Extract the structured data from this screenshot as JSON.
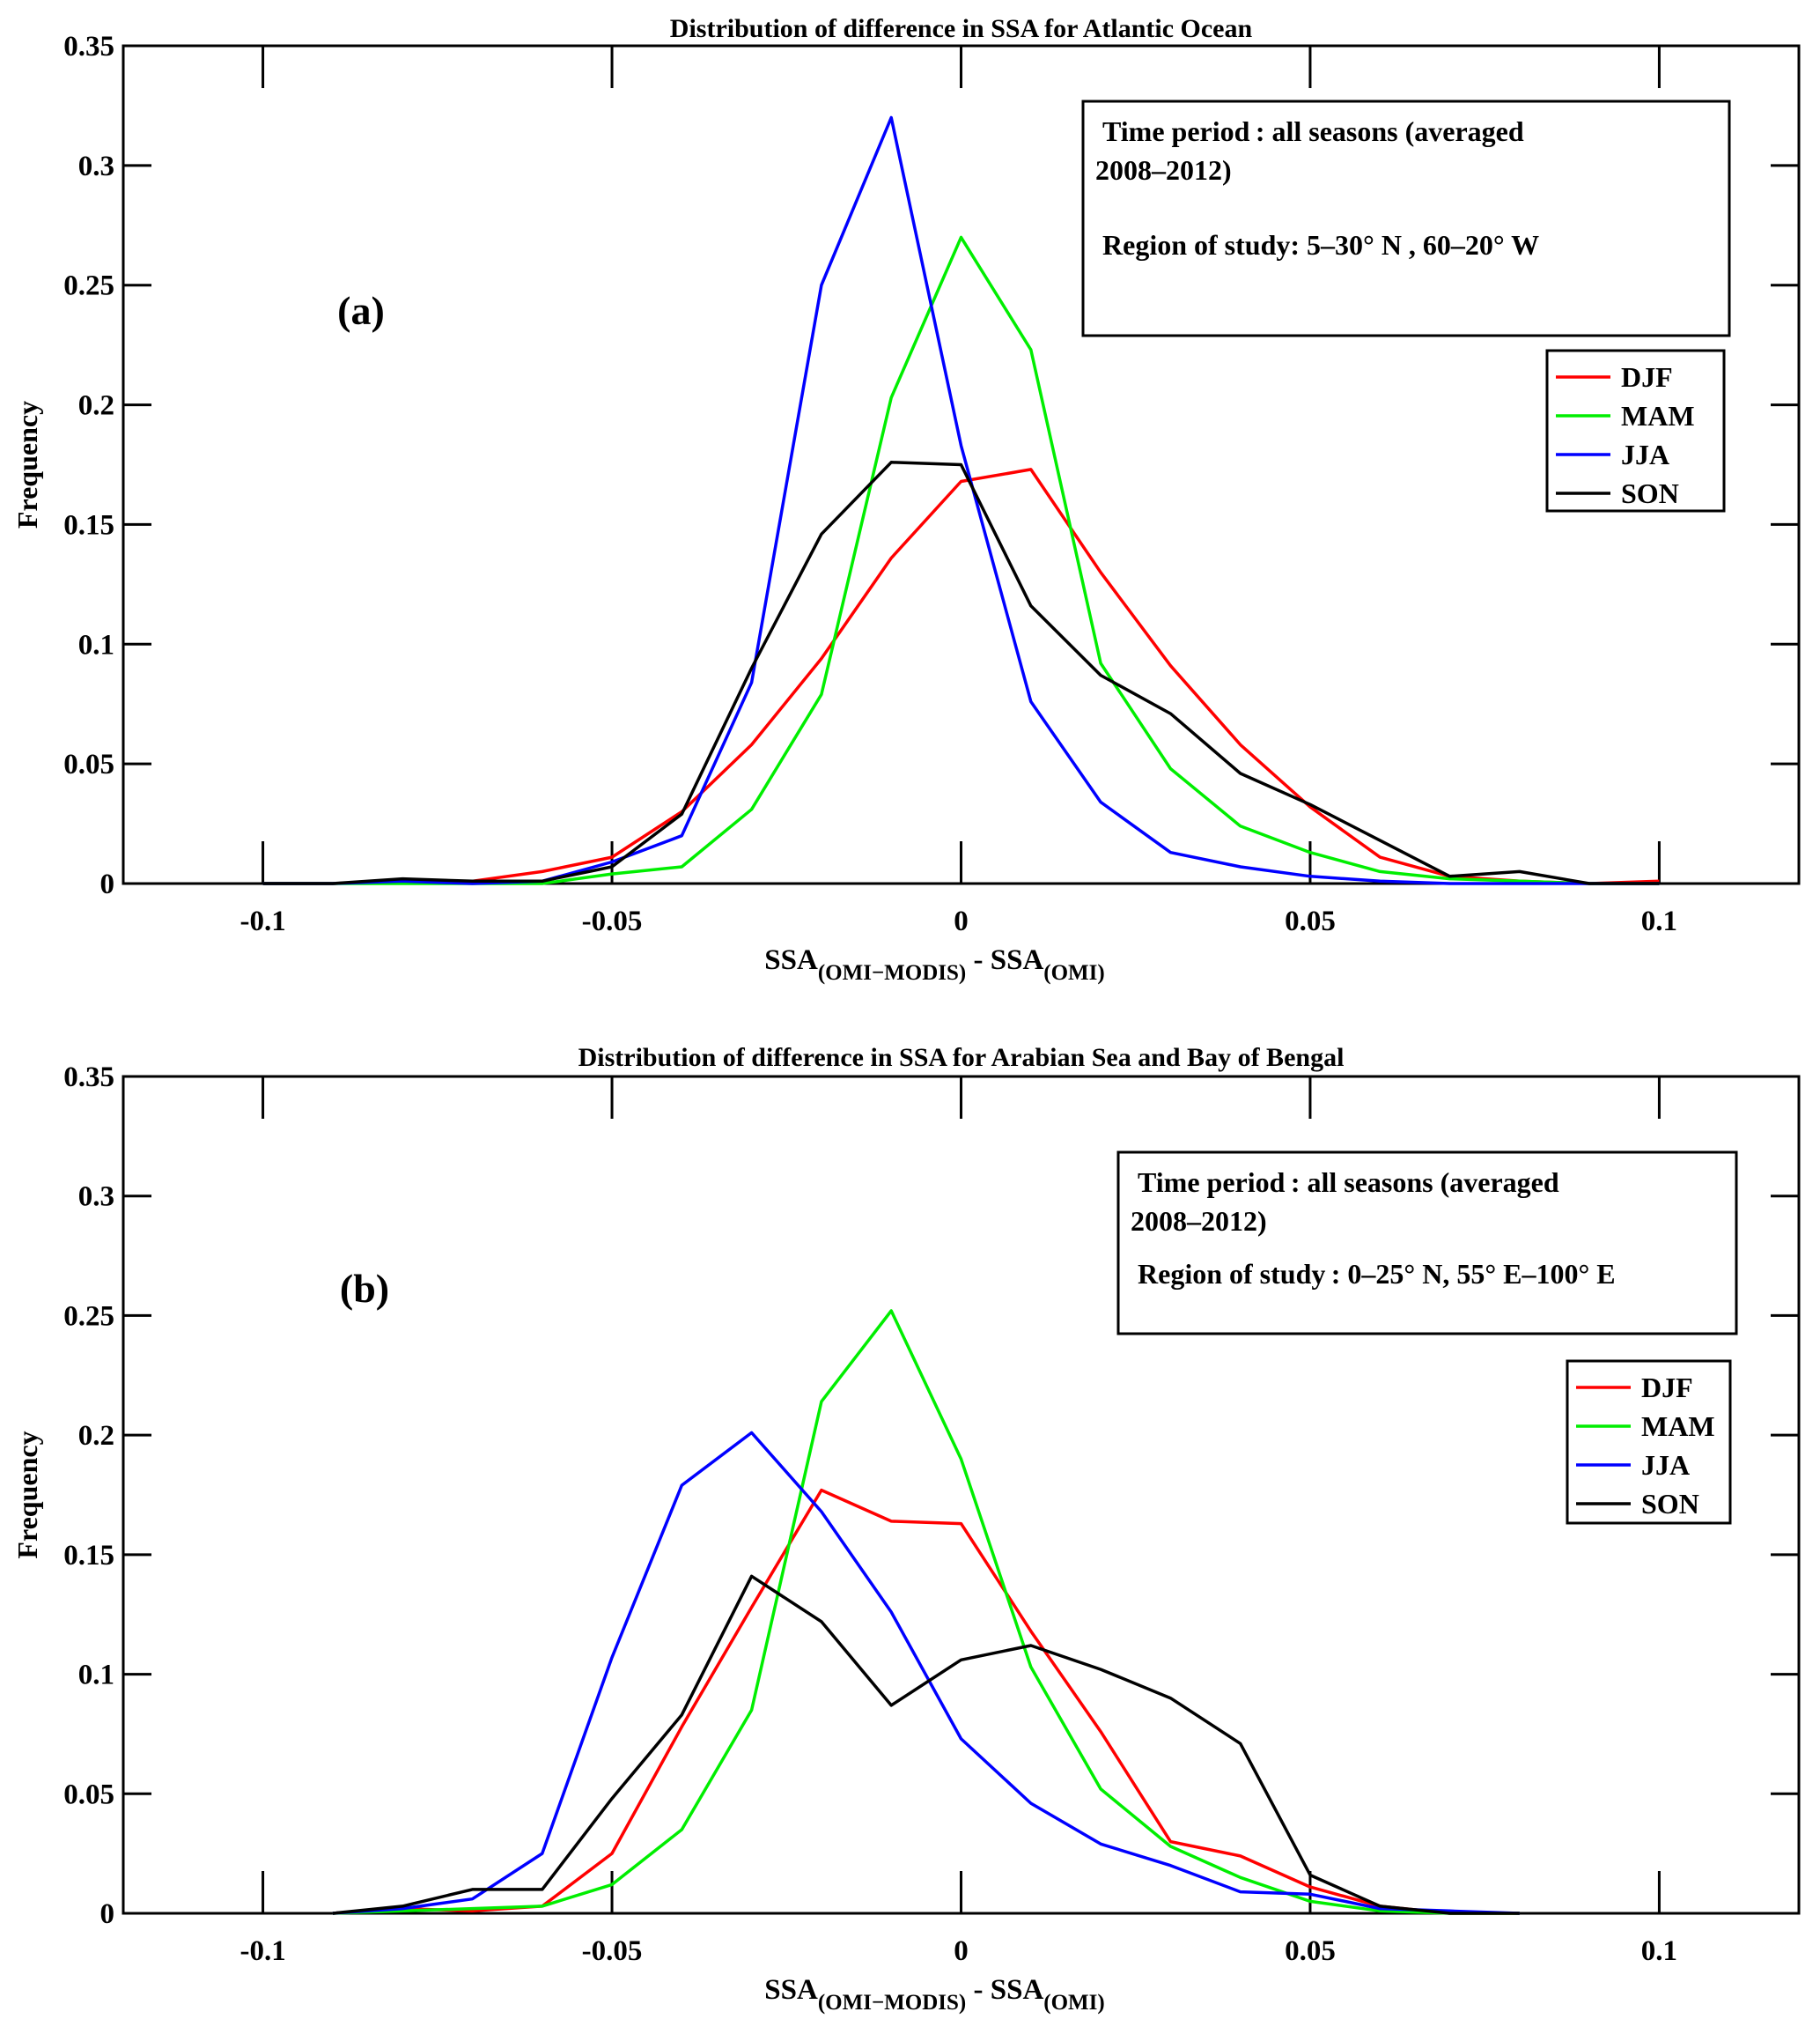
{
  "chart_data": [
    {
      "type": "line",
      "title": "Distribution of difference in SSA for Atlantic Ocean",
      "panel_label": "(a)",
      "ylabel": "Frequency",
      "xlabel": {
        "main": "SSA",
        "sub1": "(OMI−MODIS)",
        "mid": " - SSA",
        "sub2": "(OMI)"
      },
      "xlim": [
        -0.12,
        0.12
      ],
      "ylim": [
        0,
        0.35
      ],
      "xticks": [
        -0.1,
        -0.05,
        0,
        0.05,
        0.1
      ],
      "xtick_labels": [
        "-0.1",
        "-0.05",
        "0",
        "0.05",
        "0.1"
      ],
      "yticks": [
        0,
        0.05,
        0.1,
        0.15,
        0.2,
        0.25,
        0.3,
        0.35
      ],
      "ytick_labels": [
        "0",
        "0.05",
        "0.1",
        "0.15",
        "0.2",
        "0.25",
        "0.3",
        "0.35"
      ],
      "annotation": {
        "line1": "Time period :  all seasons (averaged",
        "line2": "2008–2012)",
        "line3": "Region of study:  5–30° N , 60–20° W"
      },
      "legend_position": "right",
      "x": [
        -0.1,
        -0.09,
        -0.08,
        -0.07,
        -0.06,
        -0.05,
        -0.04,
        -0.03,
        -0.02,
        -0.01,
        0,
        0.01,
        0.02,
        0.03,
        0.04,
        0.05,
        0.06,
        0.07,
        0.08,
        0.09,
        0.1
      ],
      "series": [
        {
          "name": "DJF",
          "color": "#ff0000",
          "values": [
            0,
            0,
            0.001,
            0.001,
            0.005,
            0.011,
            0.03,
            0.058,
            0.094,
            0.136,
            0.168,
            0.173,
            0.13,
            0.091,
            0.058,
            0.032,
            0.011,
            0.003,
            0.001,
            0,
            0.001
          ]
        },
        {
          "name": "MAM",
          "color": "#00ee00",
          "values": [
            0,
            0,
            0,
            0,
            0,
            0.004,
            0.007,
            0.031,
            0.079,
            0.203,
            0.27,
            0.223,
            0.092,
            0.048,
            0.024,
            0.013,
            0.005,
            0.002,
            0.001,
            0,
            0
          ]
        },
        {
          "name": "JJA",
          "color": "#0000ff",
          "values": [
            0,
            0,
            0.001,
            0,
            0.001,
            0.009,
            0.02,
            0.084,
            0.25,
            0.32,
            0.183,
            0.076,
            0.034,
            0.013,
            0.007,
            0.003,
            0.001,
            0,
            0,
            0,
            0
          ]
        },
        {
          "name": "SON",
          "color": "#000000",
          "values": [
            0,
            0,
            0.002,
            0.001,
            0.001,
            0.007,
            0.029,
            0.09,
            0.146,
            0.176,
            0.175,
            0.116,
            0.087,
            0.071,
            0.046,
            0.033,
            0.018,
            0.003,
            0.005,
            0,
            0
          ]
        }
      ]
    },
    {
      "type": "line",
      "title": "Distribution of difference in SSA for Arabian Sea and Bay of Bengal",
      "panel_label": "(b)",
      "ylabel": "Frequency",
      "xlabel": {
        "main": "SSA",
        "sub1": "(OMI−MODIS)",
        "mid": " - SSA",
        "sub2": "(OMI)"
      },
      "xlim": [
        -0.12,
        0.12
      ],
      "ylim": [
        0,
        0.35
      ],
      "xticks": [
        -0.1,
        -0.05,
        0,
        0.05,
        0.1
      ],
      "xtick_labels": [
        "-0.1",
        "-0.05",
        "0",
        "0.05",
        "0.1"
      ],
      "yticks": [
        0,
        0.05,
        0.1,
        0.15,
        0.2,
        0.25,
        0.3,
        0.35
      ],
      "ytick_labels": [
        "0",
        "0.05",
        "0.1",
        "0.15",
        "0.2",
        "0.25",
        "0.3",
        "0.35"
      ],
      "annotation": {
        "line1": "Time period :  all seasons (averaged",
        "line2": "2008–2012)",
        "line3": "Region of study :  0–25° N,  55° E–100° E"
      },
      "legend_position": "right",
      "x": [
        -0.09,
        -0.08,
        -0.07,
        -0.06,
        -0.05,
        -0.04,
        -0.03,
        -0.02,
        -0.01,
        0,
        0.01,
        0.02,
        0.03,
        0.04,
        0.05,
        0.06,
        0.07,
        0.08
      ],
      "series": [
        {
          "name": "DJF",
          "color": "#ff0000",
          "values": [
            0,
            0.002,
            0.001,
            0.003,
            0.025,
            0.078,
            0.128,
            0.177,
            0.164,
            0.163,
            0.118,
            0.076,
            0.03,
            0.024,
            0.011,
            0.003,
            0,
            0
          ]
        },
        {
          "name": "MAM",
          "color": "#00ee00",
          "values": [
            0,
            0.001,
            0.002,
            0.003,
            0.012,
            0.035,
            0.085,
            0.214,
            0.252,
            0.19,
            0.103,
            0.052,
            0.028,
            0.015,
            0.005,
            0.001,
            0,
            0
          ]
        },
        {
          "name": "JJA",
          "color": "#0000ff",
          "values": [
            0,
            0.002,
            0.006,
            0.025,
            0.107,
            0.179,
            0.201,
            0.168,
            0.126,
            0.073,
            0.046,
            0.029,
            0.02,
            0.009,
            0.008,
            0.002,
            0.001,
            0
          ]
        },
        {
          "name": "SON",
          "color": "#000000",
          "values": [
            0,
            0.003,
            0.01,
            0.01,
            0.048,
            0.083,
            0.141,
            0.122,
            0.087,
            0.106,
            0.112,
            0.102,
            0.09,
            0.071,
            0.016,
            0.003,
            0,
            0
          ]
        }
      ]
    }
  ]
}
